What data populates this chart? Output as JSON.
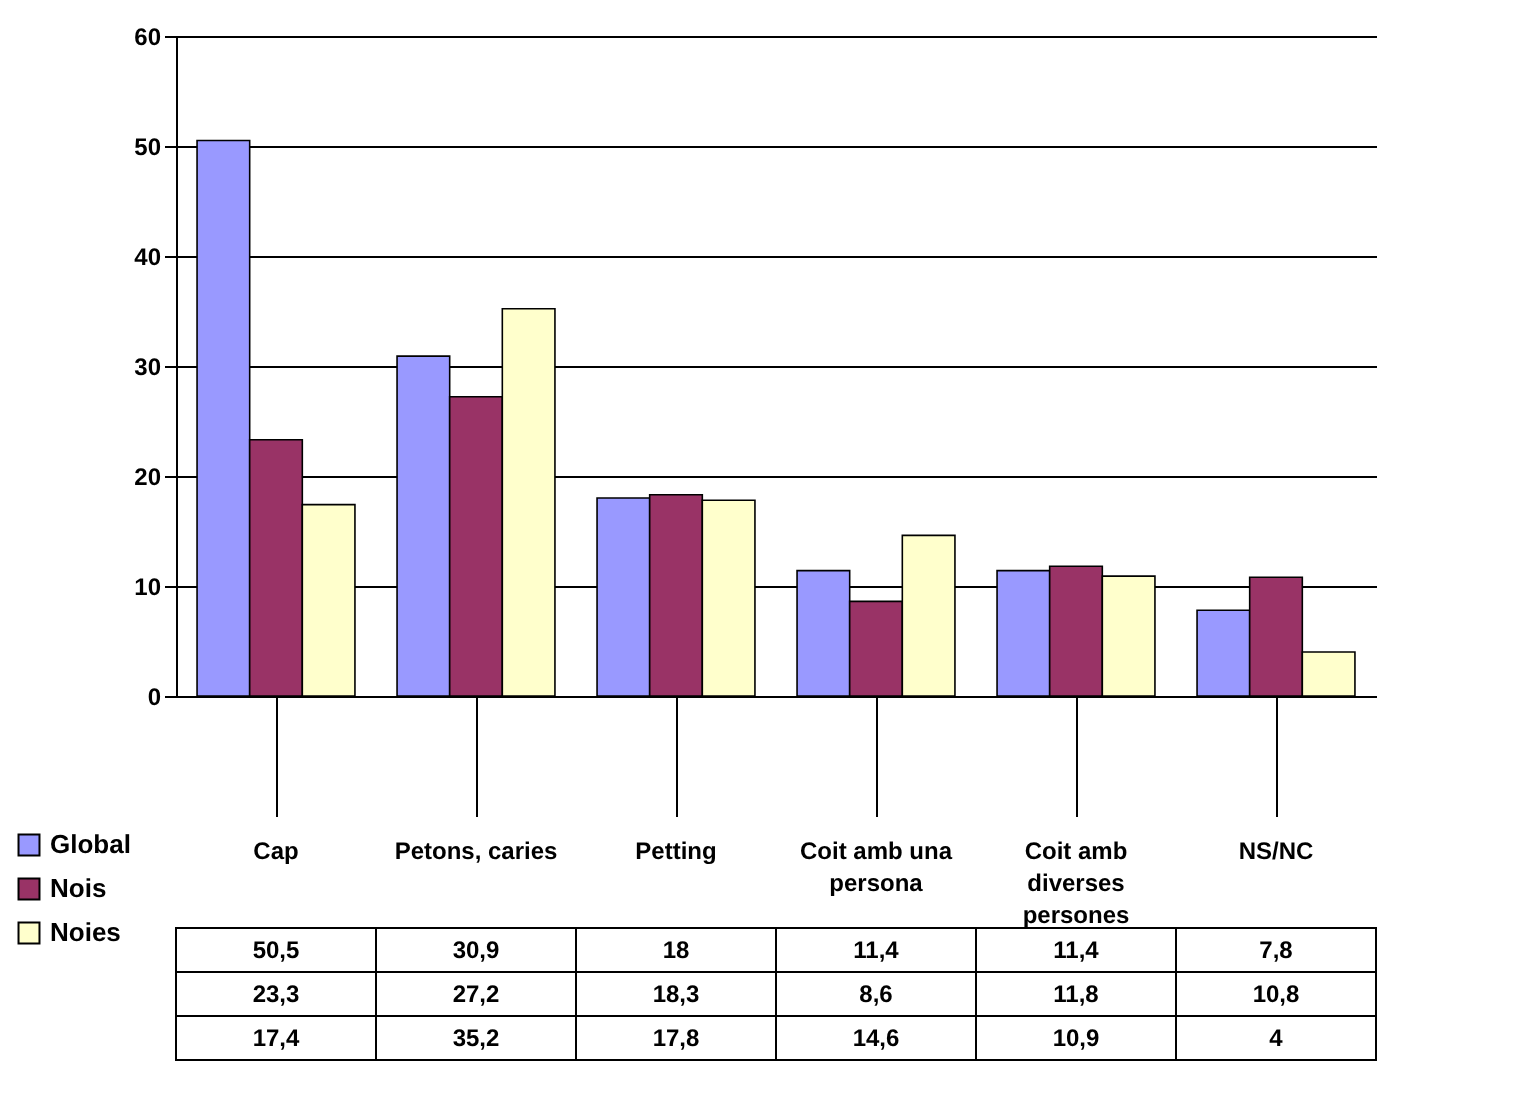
{
  "chart_data": {
    "type": "bar",
    "categories": [
      "Cap",
      "Petons, caries",
      "Petting",
      "Coit amb una persona",
      "Coit amb diverses persones",
      "NS/NC"
    ],
    "series": [
      {
        "name": "Global",
        "color": "#9999ff",
        "values": [
          50.5,
          30.9,
          18,
          11.4,
          11.4,
          7.8
        ],
        "value_labels": [
          "50,5",
          "30,9",
          "18",
          "11,4",
          "11,4",
          "7,8"
        ]
      },
      {
        "name": "Nois",
        "color": "#993366",
        "values": [
          23.3,
          27.2,
          18.3,
          8.6,
          11.8,
          10.8
        ],
        "value_labels": [
          "23,3",
          "27,2",
          "18,3",
          "8,6",
          "11,8",
          "10,8"
        ]
      },
      {
        "name": "Noies",
        "color": "#ffffcc",
        "values": [
          17.4,
          35.2,
          17.8,
          14.6,
          10.9,
          4
        ],
        "value_labels": [
          "17,4",
          "35,2",
          "17,8",
          "14,6",
          "10,9",
          "4"
        ]
      }
    ],
    "ylim": [
      0,
      60
    ],
    "yticks": [
      0,
      10,
      20,
      30,
      40,
      50,
      60
    ],
    "grid": "y",
    "legend": "bottom left"
  }
}
